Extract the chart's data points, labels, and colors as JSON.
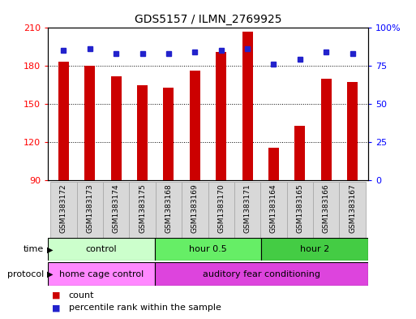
{
  "title": "GDS5157 / ILMN_2769925",
  "samples": [
    "GSM1383172",
    "GSM1383173",
    "GSM1383174",
    "GSM1383175",
    "GSM1383168",
    "GSM1383169",
    "GSM1383170",
    "GSM1383171",
    "GSM1383164",
    "GSM1383165",
    "GSM1383166",
    "GSM1383167"
  ],
  "counts": [
    183,
    180,
    172,
    165,
    163,
    176,
    191,
    207,
    116,
    133,
    170,
    167
  ],
  "percentile_ranks": [
    85,
    86,
    83,
    83,
    83,
    84,
    85,
    86,
    76,
    79,
    84,
    83
  ],
  "ylim_left": [
    90,
    210
  ],
  "ylim_right": [
    0,
    100
  ],
  "yticks_left": [
    90,
    120,
    150,
    180,
    210
  ],
  "yticks_right": [
    0,
    25,
    50,
    75,
    100
  ],
  "ytick_right_labels": [
    "0",
    "25",
    "50",
    "75",
    "100%"
  ],
  "bar_color": "#cc0000",
  "dot_color": "#2222cc",
  "groups": [
    {
      "label": "control",
      "start": 0,
      "end": 4,
      "color": "#ccffcc"
    },
    {
      "label": "hour 0.5",
      "start": 4,
      "end": 8,
      "color": "#66ee66"
    },
    {
      "label": "hour 2",
      "start": 8,
      "end": 12,
      "color": "#44cc44"
    }
  ],
  "protocols": [
    {
      "label": "home cage control",
      "start": 0,
      "end": 4,
      "color": "#ff88ff"
    },
    {
      "label": "auditory fear conditioning",
      "start": 4,
      "end": 12,
      "color": "#dd44dd"
    }
  ],
  "time_label": "time",
  "protocol_label": "protocol",
  "legend_count": "count",
  "legend_percentile": "percentile rank within the sample",
  "background_color": "#ffffff",
  "label_bg": "#d8d8d8",
  "bar_width": 0.4
}
